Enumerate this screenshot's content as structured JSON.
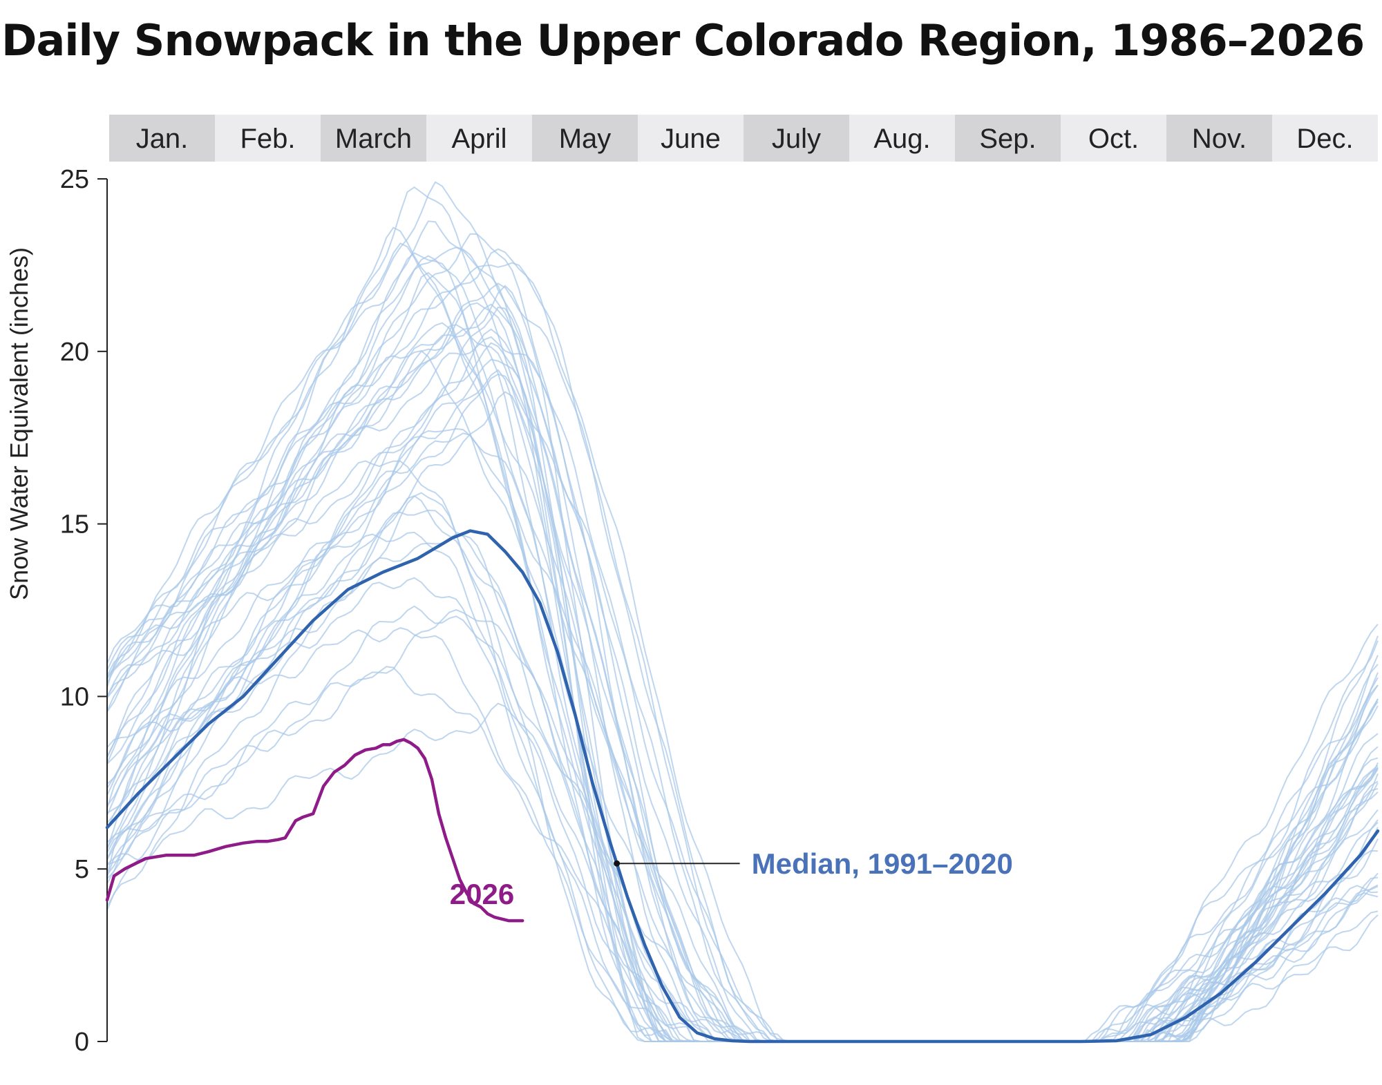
{
  "chart_data": {
    "type": "line",
    "title": "Daily Snowpack in the Upper Colorado Region, 1986–2026",
    "xlabel": "",
    "ylabel": "Snow Water Equivalent (inches)",
    "x_unit": "day of year",
    "xlim": [
      1,
      365
    ],
    "ylim": [
      0,
      25
    ],
    "y_ticks": [
      0,
      5,
      10,
      15,
      20,
      25
    ],
    "grid": false,
    "months": [
      "Jan.",
      "Feb.",
      "March",
      "April",
      "May",
      "June",
      "July",
      "Aug.",
      "Sep.",
      "Oct.",
      "Nov.",
      "Dec."
    ],
    "colors": {
      "historical": "#a9c8e8",
      "median": "#2f63ad",
      "current": "#8e1b87",
      "band_dark": "#d4d4d6",
      "band_light": "#ececee"
    },
    "series": [
      {
        "name": "2026",
        "role": "current",
        "x": [
          1,
          3,
          6,
          8,
          10,
          12,
          15,
          18,
          22,
          26,
          30,
          35,
          40,
          44,
          47,
          50,
          52,
          55,
          57,
          60,
          63,
          66,
          69,
          72,
          75,
          78,
          80,
          82,
          84,
          86,
          88,
          90,
          92,
          94,
          96,
          98,
          100,
          102,
          104,
          106,
          108,
          110,
          112,
          114,
          116,
          118,
          120
        ],
        "y": [
          4.1,
          4.8,
          5.0,
          5.1,
          5.2,
          5.3,
          5.35,
          5.4,
          5.4,
          5.4,
          5.5,
          5.65,
          5.75,
          5.8,
          5.8,
          5.85,
          5.9,
          6.4,
          6.5,
          6.6,
          7.4,
          7.8,
          8.0,
          8.3,
          8.45,
          8.5,
          8.6,
          8.6,
          8.7,
          8.75,
          8.65,
          8.5,
          8.2,
          7.6,
          6.6,
          5.9,
          5.3,
          4.7,
          4.3,
          4.0,
          3.9,
          3.7,
          3.6,
          3.55,
          3.5,
          3.5,
          3.5
        ]
      },
      {
        "name": "Median, 1991–2020",
        "role": "median",
        "x": [
          1,
          10,
          20,
          30,
          40,
          50,
          60,
          70,
          80,
          90,
          100,
          105,
          110,
          115,
          120,
          125,
          130,
          135,
          140,
          145,
          150,
          155,
          160,
          165,
          170,
          175,
          180,
          185,
          190,
          200,
          220,
          240,
          260,
          280,
          290,
          300,
          310,
          320,
          330,
          340,
          350,
          360,
          365
        ],
        "y": [
          6.2,
          7.2,
          8.2,
          9.2,
          10.0,
          11.1,
          12.2,
          13.1,
          13.6,
          14.0,
          14.6,
          14.8,
          14.7,
          14.2,
          13.6,
          12.7,
          11.3,
          9.5,
          7.5,
          5.8,
          4.2,
          2.8,
          1.6,
          0.7,
          0.25,
          0.08,
          0.02,
          0.0,
          0.0,
          0.0,
          0.0,
          0.0,
          0.0,
          0.0,
          0.02,
          0.2,
          0.7,
          1.4,
          2.3,
          3.3,
          4.3,
          5.4,
          6.1
        ]
      }
    ],
    "historical_envelope": {
      "note": "41 individual years (1986–2026) drawn as thin light-blue lines",
      "peak_range_inches": [
        9.5,
        24.6
      ],
      "peak_day_range": [
        80,
        115
      ],
      "melt_out_day_range": [
        155,
        200
      ],
      "dec31_range_inches": [
        3.4,
        12.6
      ]
    },
    "annotations": {
      "label_2026": "2026",
      "label_median": "Median, 1991–2020"
    }
  }
}
